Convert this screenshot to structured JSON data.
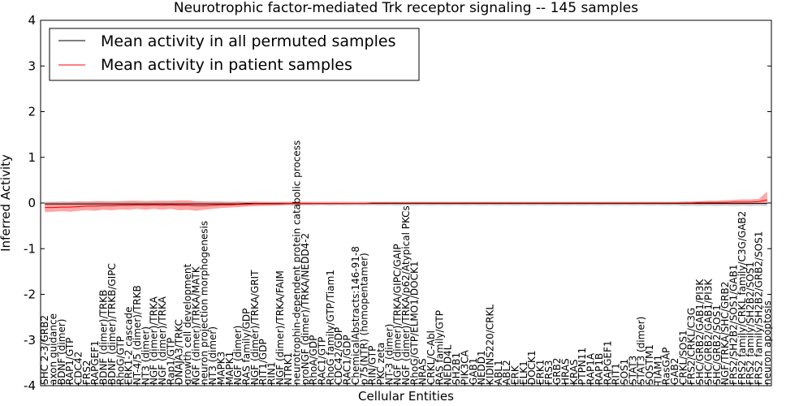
{
  "chart_data": {
    "type": "line",
    "title": "Neurotrophic factor-mediated Trk receptor signaling -- 145 samples",
    "xlabel": "Cellular Entities",
    "ylabel": "Inferred Activity",
    "ylim": [
      -4,
      4
    ],
    "yticks": [
      -4,
      -3,
      -2,
      -1,
      0,
      1,
      2,
      3,
      4
    ],
    "legend": {
      "position": "top-left",
      "entries": [
        {
          "label": "Mean activity in all permuted samples",
          "color": "#000000"
        },
        {
          "label": "Mean activity in patient samples",
          "color": "#ff0000"
        }
      ]
    },
    "categories": [
      "SHC 2-3/GRB2",
      "axon guidance",
      "BDNF (dimer)",
      "RAP1/GTP",
      "CDC42",
      "FRS2",
      "RAPGEF1",
      "BDNF (dimer)/TRKB",
      "BDNF (dimer)/TRKB/GIPC",
      "RhoG/GTP",
      "ERK1-2 cascade",
      "NT-4/5 (dimer)/TRKB",
      "NT3 (dimer)",
      "NGF (dimer)/TRKA",
      "NGF (dimer)/TRKA",
      "Rap1/GTP",
      "DNAJA3/TRKC",
      "growth cell development",
      "NGF (dimer)/TRKA/MATK",
      "neuron projection morphogenesis",
      "NT3 (dimer)",
      "MAPK3",
      "MAPK1",
      "NGF (dimer)",
      "RAS family/GDP",
      "NGF (dimer)/TRKA/GRIT",
      "RIT1/GDP",
      "RIN1",
      "NGF (dimer)/TRKA/FAIM",
      "NTRK1",
      "neurotrophin-dependent protein catabolic process",
      "proNGF (dimer)/TRKA/NEDD4-2",
      "RhoA/GDP",
      "RAC1/GTP",
      "RhoG family/GTP/Tiam1",
      "CDC42/GDP",
      "RAC1/GDP",
      "ChemicalAbstracts:146-91-8",
      "p75(NTR) (homopentamer)",
      "RIN/GTP",
      "PKC zeta",
      "NT-3 (dimer)",
      "NGF (dimer)/TRKA/GIPC/GAIP",
      "NGF (dimer)/TRKA/p62/Atypical PKCs",
      "RhoG/GTP/ELMO1/DOCK1",
      "NRAS",
      "CRKL/C-Abl",
      "RAS family/GTP",
      "NEDD4L",
      "SH2B1",
      "PIK3CA",
      "GAB1",
      "NEDD1",
      "KIDINS220/CRKL",
      "ABL1",
      "ABL2",
      "ERK",
      "ELK1",
      "DOCK1",
      "ERK1",
      "FRS3",
      "GRB2",
      "HRAS",
      "KRAS",
      "PTPN11",
      "RAP1A",
      "RAP1B",
      "RAPGEF1",
      "RIT1",
      "SOS1",
      "STAT3",
      "STAT3 (dimer)",
      "SQSTM1",
      "TIAM1",
      "RasGAP",
      "GAB2",
      "CRKL/SOS1",
      "FRS2/CRKL/C3G",
      "SHC/GRB2/GAB1/PI3K",
      "SHC/GRB2/GAB1/PI3K",
      "SHC/GRB2/SOS1",
      "NGF/TRKA/SHC/GRB2",
      "FRS2/SH2B2/SOS1/GAB1",
      "FRS2 family/CRKL family/C3G/GAB2",
      "FRS2 family/SH2B2/SOS1",
      "FRS2 family/SH2B2/GRB2/SOS1",
      "neuron apoptosis"
    ],
    "series": [
      {
        "name": "Mean activity in all permuted samples",
        "color": "#000000",
        "band_color": "#b0b0b0",
        "values": [
          -0.02,
          -0.02,
          -0.02,
          -0.02,
          -0.02,
          -0.02,
          -0.02,
          -0.02,
          -0.02,
          -0.02,
          -0.02,
          -0.02,
          -0.02,
          -0.02,
          -0.02,
          -0.02,
          -0.02,
          -0.02,
          -0.02,
          -0.02,
          -0.02,
          -0.02,
          -0.02,
          -0.02,
          -0.01,
          -0.01,
          -0.01,
          -0.01,
          -0.01,
          -0.01,
          -0.01,
          -0.01,
          -0.01,
          -0.01,
          -0.01,
          -0.01,
          -0.01,
          -0.01,
          -0.01,
          -0.01,
          -0.01,
          -0.01,
          -0.01,
          -0.01,
          -0.01,
          -0.01,
          -0.01,
          -0.01,
          -0.01,
          -0.01,
          -0.01,
          -0.01,
          -0.01,
          -0.01,
          -0.01,
          -0.01,
          -0.01,
          -0.01,
          -0.01,
          -0.01,
          -0.01,
          -0.01,
          -0.01,
          -0.01,
          -0.01,
          -0.01,
          -0.01,
          -0.01,
          -0.01,
          -0.01,
          -0.01,
          -0.01,
          -0.01,
          -0.01,
          -0.01,
          -0.01,
          -0.01,
          -0.01,
          -0.01,
          -0.01,
          -0.01,
          -0.01,
          -0.01,
          -0.01,
          -0.01,
          -0.01,
          -0.01
        ],
        "lower": [
          -0.08,
          -0.07,
          -0.08,
          -0.07,
          -0.08,
          -0.07,
          -0.08,
          -0.07,
          -0.08,
          -0.07,
          -0.08,
          -0.07,
          -0.08,
          -0.07,
          -0.08,
          -0.07,
          -0.08,
          -0.07,
          -0.07,
          -0.06,
          -0.07,
          -0.06,
          -0.07,
          -0.06,
          -0.06,
          -0.05,
          -0.06,
          -0.05,
          -0.06,
          -0.05,
          -0.06,
          -0.05,
          -0.06,
          -0.05,
          -0.06,
          -0.05,
          -0.06,
          -0.05,
          -0.06,
          -0.05,
          -0.06,
          -0.05,
          -0.06,
          -0.05,
          -0.06,
          -0.05,
          -0.06,
          -0.05,
          -0.06,
          -0.05,
          -0.06,
          -0.05,
          -0.06,
          -0.05,
          -0.06,
          -0.05,
          -0.06,
          -0.05,
          -0.06,
          -0.05,
          -0.06,
          -0.05,
          -0.06,
          -0.05,
          -0.06,
          -0.05,
          -0.06,
          -0.05,
          -0.06,
          -0.05,
          -0.06,
          -0.05,
          -0.06,
          -0.05,
          -0.06,
          -0.05,
          -0.07,
          -0.06,
          -0.07,
          -0.06,
          -0.07,
          -0.06,
          -0.07,
          -0.06,
          -0.07,
          -0.06,
          -0.07
        ],
        "upper": [
          0.04,
          0.03,
          0.04,
          0.03,
          0.04,
          0.03,
          0.04,
          0.03,
          0.04,
          0.03,
          0.04,
          0.03,
          0.04,
          0.03,
          0.04,
          0.03,
          0.04,
          0.03,
          0.03,
          0.03,
          0.03,
          0.03,
          0.03,
          0.03,
          0.03,
          0.03,
          0.03,
          0.03,
          0.03,
          0.03,
          0.03,
          0.03,
          0.03,
          0.03,
          0.03,
          0.03,
          0.03,
          0.03,
          0.03,
          0.03,
          0.03,
          0.03,
          0.03,
          0.03,
          0.03,
          0.03,
          0.03,
          0.03,
          0.03,
          0.03,
          0.03,
          0.03,
          0.03,
          0.03,
          0.03,
          0.03,
          0.03,
          0.03,
          0.03,
          0.03,
          0.03,
          0.03,
          0.03,
          0.03,
          0.03,
          0.03,
          0.03,
          0.03,
          0.03,
          0.03,
          0.03,
          0.03,
          0.03,
          0.03,
          0.03,
          0.03,
          0.04,
          0.04,
          0.04,
          0.04,
          0.04,
          0.04,
          0.04,
          0.04,
          0.04,
          0.04,
          0.04
        ]
      },
      {
        "name": "Mean activity in patient samples",
        "color": "#ff0000",
        "band_color": "#ff8080",
        "values": [
          -0.1,
          -0.1,
          -0.09,
          -0.09,
          -0.08,
          -0.07,
          -0.07,
          -0.06,
          -0.06,
          -0.05,
          -0.05,
          -0.04,
          -0.05,
          -0.04,
          -0.05,
          -0.04,
          -0.05,
          -0.05,
          -0.06,
          -0.06,
          -0.05,
          -0.04,
          -0.04,
          -0.03,
          -0.03,
          -0.02,
          -0.02,
          -0.02,
          -0.02,
          -0.01,
          -0.01,
          -0.01,
          -0.01,
          -0.01,
          -0.01,
          -0.01,
          -0.01,
          -0.01,
          -0.01,
          0.0,
          0.0,
          0.0,
          0.0,
          0.0,
          0.0,
          0.0,
          0.0,
          0.0,
          0.0,
          0.0,
          0.0,
          0.0,
          0.0,
          0.0,
          0.0,
          0.0,
          0.0,
          0.0,
          0.0,
          0.0,
          0.0,
          0.0,
          0.0,
          0.0,
          0.0,
          0.0,
          0.0,
          0.0,
          0.0,
          0.0,
          0.0,
          0.0,
          0.0,
          0.0,
          0.0,
          0.0,
          0.0,
          0.0,
          0.01,
          0.01,
          0.01,
          0.01,
          0.02,
          0.02,
          0.02,
          0.03,
          0.07
        ],
        "lower": [
          -0.2,
          -0.19,
          -0.18,
          -0.19,
          -0.17,
          -0.16,
          -0.17,
          -0.15,
          -0.16,
          -0.14,
          -0.15,
          -0.13,
          -0.15,
          -0.13,
          -0.15,
          -0.13,
          -0.16,
          -0.15,
          -0.17,
          -0.15,
          -0.13,
          -0.11,
          -0.1,
          -0.09,
          -0.08,
          -0.07,
          -0.06,
          -0.06,
          -0.05,
          -0.04,
          -0.04,
          -0.04,
          -0.03,
          -0.03,
          -0.03,
          -0.03,
          -0.02,
          -0.02,
          -0.02,
          -0.02,
          -0.02,
          -0.02,
          -0.02,
          -0.02,
          -0.02,
          -0.02,
          -0.02,
          -0.02,
          -0.02,
          -0.02,
          -0.02,
          -0.02,
          -0.02,
          -0.02,
          -0.02,
          -0.02,
          -0.02,
          -0.02,
          -0.02,
          -0.02,
          -0.02,
          -0.02,
          -0.02,
          -0.02,
          -0.02,
          -0.02,
          -0.02,
          -0.02,
          -0.02,
          -0.02,
          -0.02,
          -0.02,
          -0.02,
          -0.02,
          -0.02,
          -0.02,
          -0.02,
          -0.02,
          -0.02,
          -0.02,
          -0.02,
          -0.02,
          -0.02,
          -0.02,
          -0.02,
          -0.01,
          -0.01
        ],
        "upper": [
          0.0,
          0.02,
          0.01,
          0.02,
          0.03,
          0.03,
          0.04,
          0.04,
          0.03,
          0.04,
          0.05,
          0.05,
          0.04,
          0.05,
          0.05,
          0.05,
          0.06,
          0.06,
          0.04,
          0.03,
          0.03,
          0.03,
          0.02,
          0.03,
          0.02,
          0.03,
          0.02,
          0.02,
          0.02,
          0.02,
          0.02,
          0.02,
          0.01,
          0.01,
          0.01,
          0.01,
          0.01,
          0.01,
          0.01,
          0.01,
          0.01,
          0.01,
          0.01,
          0.01,
          0.01,
          0.01,
          0.01,
          0.01,
          0.01,
          0.01,
          0.01,
          0.01,
          0.01,
          0.01,
          0.01,
          0.01,
          0.01,
          0.01,
          0.01,
          0.01,
          0.01,
          0.01,
          0.01,
          0.01,
          0.01,
          0.01,
          0.01,
          0.01,
          0.01,
          0.01,
          0.01,
          0.01,
          0.01,
          0.01,
          0.01,
          0.01,
          0.02,
          0.03,
          0.04,
          0.05,
          0.05,
          0.06,
          0.07,
          0.08,
          0.08,
          0.09,
          0.25
        ]
      }
    ]
  }
}
